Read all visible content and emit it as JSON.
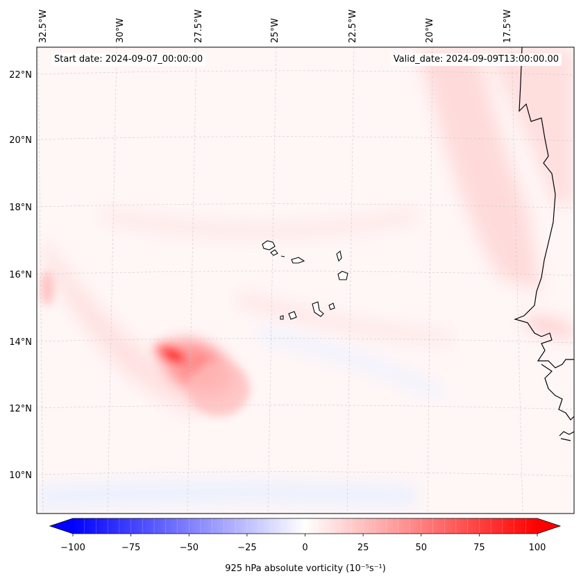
{
  "map": {
    "start_label": "Start date: 2024-09-07_00:00:00",
    "valid_label": "Valid_date: 2024-09-09T13:00:00.00",
    "lon_ticks": [
      "32.5°W",
      "30°W",
      "27.5°W",
      "25°W",
      "22.5°W",
      "20°W",
      "17.5°W"
    ],
    "lat_ticks": [
      "22°N",
      "20°N",
      "18°N",
      "16°N",
      "14°N",
      "12°N",
      "10°N"
    ],
    "extent": {
      "lon_min": -33,
      "lon_max": -15.6,
      "lat_min": 8.9,
      "lat_max": 22.8
    }
  },
  "colorbar": {
    "label": "925 hPa absolute vorticity (10⁻⁵s⁻¹)",
    "ticks": [
      "−100",
      "−75",
      "−50",
      "−25",
      "0",
      "25",
      "50",
      "75",
      "100"
    ],
    "vmin": -100,
    "vmax": 100,
    "levels": 41,
    "cmap": "bwr",
    "colors": {
      "min": "#0000ff",
      "mid": "#ffffff",
      "max": "#ff0000"
    }
  },
  "field": {
    "max_value_approx": 95,
    "max_location": "13.7°N 28.2°W"
  }
}
